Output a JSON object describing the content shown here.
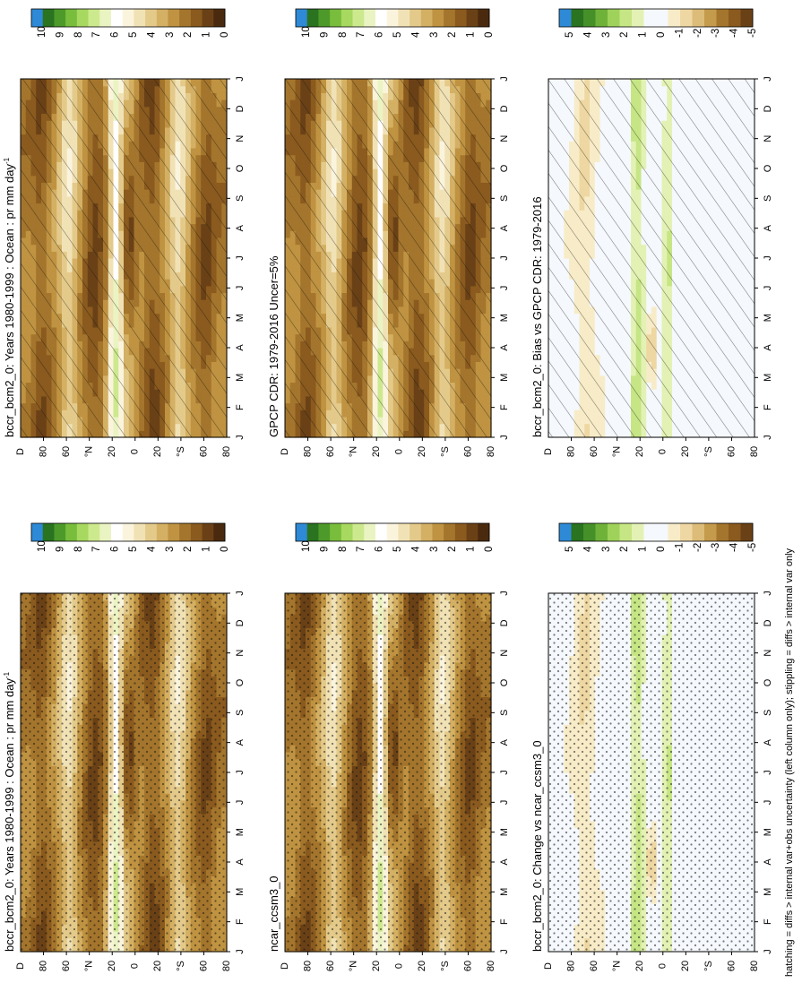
{
  "chart_data": [
    {
      "type": "heatmap",
      "title": "bccr_bcm2_0: Years 1980-1999 : Ocean : pr mm day",
      "unit_sup": "-1",
      "x_ticks": [
        "J",
        "F",
        "M",
        "A",
        "M",
        "J",
        "J",
        "A",
        "S",
        "O",
        "N",
        "D",
        "J"
      ],
      "y_ticks": [
        "D",
        "80",
        "60",
        "°N",
        "20",
        "0",
        "20",
        "°S",
        "60",
        "80"
      ],
      "colorbar_labels": [
        "10",
        "9",
        "8",
        "7",
        "6",
        "5",
        "4",
        "3",
        "2",
        "1",
        "0"
      ],
      "scale": "abs",
      "overlay": "hatch"
    },
    {
      "type": "heatmap",
      "title": "bccr_bcm2_0: Years 1980-1999 : Ocean : pr mm day",
      "unit_sup": "-1",
      "x_ticks": [
        "J",
        "F",
        "M",
        "A",
        "M",
        "J",
        "J",
        "A",
        "S",
        "O",
        "N",
        "D",
        "J"
      ],
      "y_ticks": [
        "D",
        "80",
        "60",
        "°N",
        "20",
        "0",
        "20",
        "°S",
        "60",
        "80"
      ],
      "colorbar_labels": [
        "10",
        "9",
        "8",
        "7",
        "6",
        "5",
        "4",
        "3",
        "2",
        "1",
        "0"
      ],
      "scale": "abs",
      "overlay": "dots"
    },
    {
      "type": "heatmap",
      "title": "GPCP CDR: 1979-2016 Uncer=5%",
      "x_ticks": [
        "J",
        "F",
        "M",
        "A",
        "M",
        "J",
        "J",
        "A",
        "S",
        "O",
        "N",
        "D",
        "J"
      ],
      "y_ticks": [
        "D",
        "80",
        "60",
        "°N",
        "20",
        "0",
        "20",
        "°S",
        "60",
        "80"
      ],
      "colorbar_labels": [
        "10",
        "9",
        "8",
        "7",
        "6",
        "5",
        "4",
        "3",
        "2",
        "1",
        "0"
      ],
      "scale": "abs",
      "overlay": "hatch"
    },
    {
      "type": "heatmap",
      "title": "ncar_ccsm3_0",
      "x_ticks": [
        "J",
        "F",
        "M",
        "A",
        "M",
        "J",
        "J",
        "A",
        "S",
        "O",
        "N",
        "D",
        "J"
      ],
      "y_ticks": [
        "D",
        "80",
        "60",
        "°N",
        "20",
        "0",
        "20",
        "°S",
        "60",
        "80"
      ],
      "colorbar_labels": [
        "10",
        "9",
        "8",
        "7",
        "6",
        "5",
        "4",
        "3",
        "2",
        "1",
        "0"
      ],
      "scale": "abs",
      "overlay": "dots"
    },
    {
      "type": "heatmap",
      "title": "bccr_bcm2_0: Bias vs GPCP CDR: 1979-2016",
      "x_ticks": [
        "J",
        "F",
        "M",
        "A",
        "M",
        "J",
        "J",
        "A",
        "S",
        "O",
        "N",
        "D",
        "J"
      ],
      "y_ticks": [
        "D",
        "80",
        "60",
        "°N",
        "20",
        "0",
        "20",
        "°S",
        "60",
        "80"
      ],
      "colorbar_labels": [
        "5",
        "4",
        "3",
        "2",
        "1",
        "0",
        "-1",
        "-2",
        "-3",
        "-4",
        "-5"
      ],
      "scale": "diff",
      "overlay": "hatch"
    },
    {
      "type": "heatmap",
      "title": "bccr_bcm2_0: Change vs ncar_ccsm3_0",
      "x_ticks": [
        "J",
        "F",
        "M",
        "A",
        "M",
        "J",
        "J",
        "A",
        "S",
        "O",
        "N",
        "D",
        "J"
      ],
      "y_ticks": [
        "D",
        "80",
        "60",
        "°N",
        "20",
        "0",
        "20",
        "°S",
        "60",
        "80"
      ],
      "colorbar_labels": [
        "5",
        "4",
        "3",
        "2",
        "1",
        "0",
        "-1",
        "-2",
        "-3",
        "-4",
        "-5"
      ],
      "scale": "diff",
      "overlay": "dots"
    }
  ],
  "footnote": "hatching = diffs > internal var+obs uncertainty (left column only); stippling = diffs > internal var only",
  "colors": {
    "abs_palette": [
      "#4a2a0e",
      "#6a4116",
      "#8a5a1e",
      "#a4752c",
      "#bf9341",
      "#d4b064",
      "#e4ca8a",
      "#f1e2b6",
      "#fbf4dd",
      "#ffffff",
      "#eaf4c2",
      "#cde98e",
      "#a7d85f",
      "#79bd3d",
      "#4d9a2b",
      "#2a7320",
      "#2e8ad6"
    ],
    "diff_palette": [
      "#6a4116",
      "#8a5a1e",
      "#a4752c",
      "#c49a4c",
      "#dcbc78",
      "#eed7a2",
      "#f8ecc8",
      "#f5f8fc",
      "#f5f8fc",
      "#e3f2b4",
      "#c6e685",
      "#9fd25a",
      "#6fb23a",
      "#459028",
      "#2a7320",
      "#2e8ad6"
    ]
  }
}
